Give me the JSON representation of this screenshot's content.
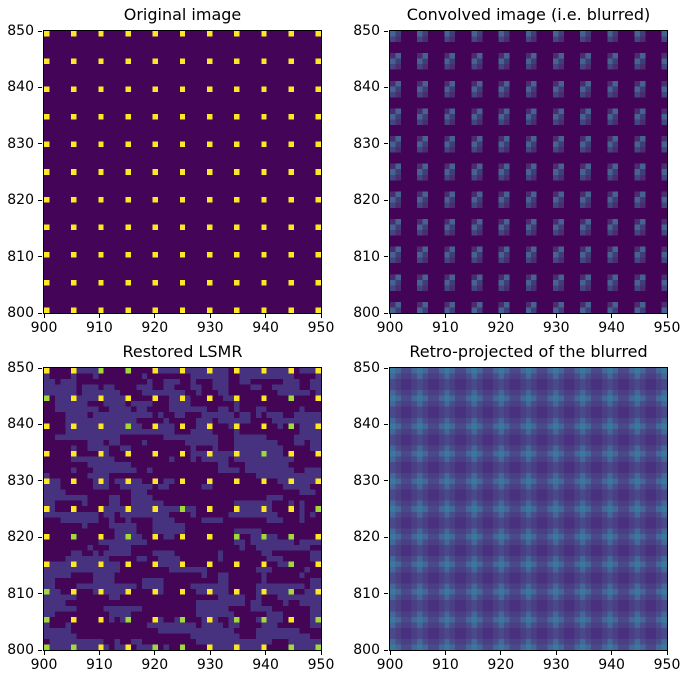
{
  "chart_data": {
    "type": "heatmap",
    "grid_layout": "2 rows x 2 cols",
    "x_range": [
      900,
      950
    ],
    "y_range": [
      800,
      850
    ],
    "x_tick_labels": [
      "900",
      "910",
      "920",
      "930",
      "940",
      "950"
    ],
    "x_tick_values": [
      900,
      910,
      920,
      930,
      940,
      950
    ],
    "y_tick_labels": [
      "850",
      "840",
      "830",
      "820",
      "810",
      "800"
    ],
    "y_tick_values": [
      850,
      840,
      830,
      820,
      810,
      800
    ],
    "point_grid": {
      "spacing": 5,
      "x_positions": [
        900,
        905,
        910,
        915,
        920,
        925,
        930,
        935,
        940,
        945,
        950
      ],
      "y_positions": [
        800,
        805,
        810,
        815,
        820,
        825,
        830,
        835,
        840,
        845,
        850
      ]
    },
    "text_color": "#000000",
    "spine_color": "#000000",
    "panels": [
      {
        "title": "Original image",
        "kind": "dots",
        "background": "#440457",
        "dot_color": "#fde725"
      },
      {
        "title": "Convolved image (i.e. blurred)",
        "kind": "psf_blobs",
        "background": "#430458",
        "blob_pixels": [
          [
            0,
            -1,
            "#4b2d6f"
          ],
          [
            1,
            -1,
            "#45638e"
          ],
          [
            0,
            0,
            "#45638e"
          ],
          [
            1,
            0,
            "#3e3e7b"
          ],
          [
            0,
            1,
            "#42457f"
          ],
          [
            1,
            1,
            "#4b2d6f"
          ]
        ]
      },
      {
        "title": "Restored LSMR",
        "kind": "noisy_dots",
        "background_dark": "#440556",
        "background_light": "#46327e",
        "dot_colors": {
          "yellow": "#fde725",
          "green": "#a0da39"
        },
        "green_fraction": 0.26,
        "seed": 1337
      },
      {
        "title": "Retro-projected of the blurred",
        "kind": "soft_blobs",
        "background": "#472a76",
        "kernel": [
          [
            "#4a3180",
            "#4a3f85",
            "#4a4a8b",
            "#4a3f85",
            "#4a3180"
          ],
          [
            "#4a3f85",
            "#494e8a",
            "#44679a",
            "#494e8a",
            "#4a3f85"
          ],
          [
            "#4a4a8b",
            "#44679a",
            "#38799c",
            "#44679a",
            "#4a4a8b"
          ],
          [
            "#4a3f85",
            "#494e8a",
            "#44679a",
            "#494e8a",
            "#4a3f85"
          ],
          [
            "#4a3180",
            "#4a3f85",
            "#4a4a8b",
            "#4a3f85",
            "#4a3180"
          ]
        ]
      }
    ]
  }
}
